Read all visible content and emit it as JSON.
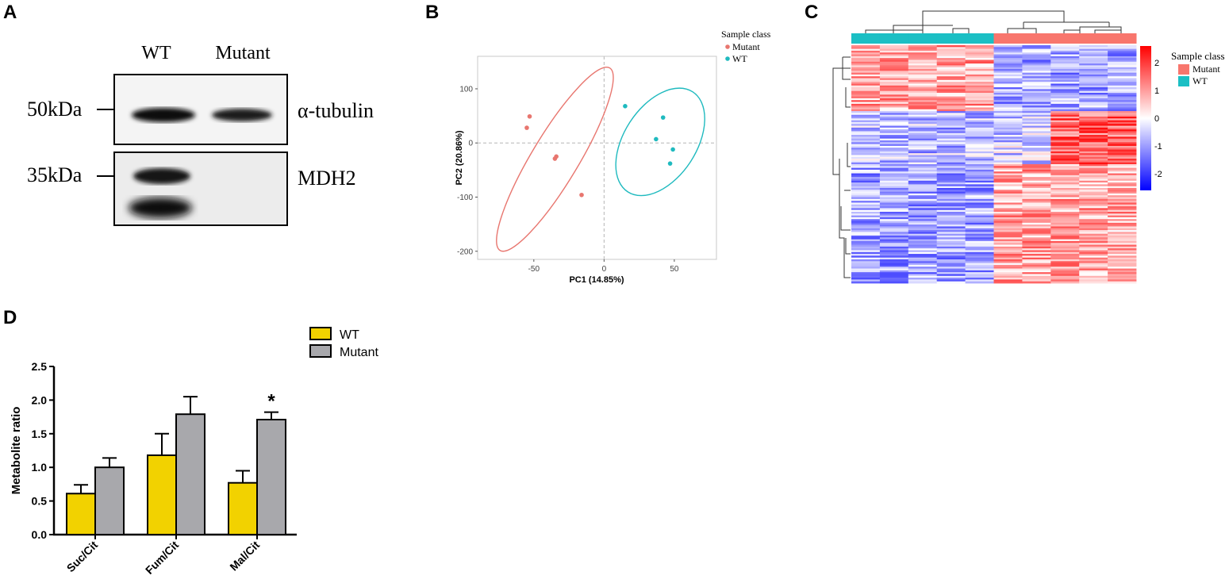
{
  "panels": {
    "a": "A",
    "b": "B",
    "c": "C",
    "d": "D"
  },
  "western_blot": {
    "lanes": [
      "WT",
      "Mutant"
    ],
    "markers": [
      "50kDa",
      "35kDa"
    ],
    "proteins": [
      "α-tubulin",
      "MDH2"
    ]
  },
  "chart_data": [
    {
      "type": "scatter",
      "title": "",
      "xlabel": "PC1 (14.85%)",
      "ylabel": "PC2 (20.86%)",
      "xlim": [
        -90,
        80
      ],
      "ylim": [
        -215,
        160
      ],
      "xticks": [
        -50,
        0,
        50
      ],
      "yticks": [
        100,
        0,
        -100,
        -200
      ],
      "xtick_labels": [
        "-50",
        "0",
        "50"
      ],
      "ytick_labels": [
        "100",
        "0",
        "-100",
        "-200"
      ],
      "legend_title": "Sample class",
      "series": [
        {
          "name": "Mutant",
          "color": "#E8766F",
          "points": [
            [
              -53,
              49
            ],
            [
              -55,
              28
            ],
            [
              -34,
              -25
            ],
            [
              -35,
              -29
            ],
            [
              -16,
              -96
            ]
          ],
          "ellipse": {
            "cx": -35,
            "cy": -30,
            "rx": 100,
            "ry": 22,
            "angle_deg": -59
          }
        },
        {
          "name": "WT",
          "color": "#1FBABF",
          "points": [
            [
              15,
              68
            ],
            [
              42,
              47
            ],
            [
              37,
              7
            ],
            [
              49,
              -12
            ],
            [
              47,
              -38
            ]
          ],
          "ellipse": {
            "cx": 40,
            "cy": 2,
            "rx": 56,
            "ry": 34,
            "angle_deg": -57
          }
        }
      ]
    },
    {
      "type": "heatmap",
      "title": "",
      "colorbar_ticks": [
        "2",
        "1",
        "0",
        "-1",
        "-2"
      ],
      "colorbar_range": [
        -2.6,
        2.6
      ],
      "legend_title": "Sample class",
      "sample_classes": [
        {
          "name": "Mutant",
          "color": "#F8766D"
        },
        {
          "name": "WT",
          "color": "#1BBFC4"
        }
      ],
      "column_classes": [
        "WT",
        "WT",
        "WT",
        "WT",
        "WT",
        "Mutant",
        "Mutant",
        "Mutant",
        "Mutant",
        "Mutant"
      ],
      "n_rows": 130
    },
    {
      "type": "bar",
      "title": "",
      "xlabel": "",
      "ylabel": "Metabolite ratio",
      "ylim": [
        0,
        2.5
      ],
      "yticks": [
        0.0,
        0.5,
        1.0,
        1.5,
        2.0,
        2.5
      ],
      "ytick_labels": [
        "0.0",
        "0.5",
        "1.0",
        "1.5",
        "2.0",
        "2.5"
      ],
      "categories": [
        "Suc/Cit",
        "Fum/Cit",
        "Mal/Cit"
      ],
      "series": [
        {
          "name": "WT",
          "color": "#F2D200",
          "values": [
            0.61,
            1.18,
            0.77
          ],
          "errors": [
            0.13,
            0.32,
            0.18
          ]
        },
        {
          "name": "Mutant",
          "color": "#A8A8AC",
          "values": [
            1.0,
            1.79,
            1.71
          ],
          "errors": [
            0.14,
            0.26,
            0.11
          ]
        }
      ],
      "annotations": [
        {
          "category": "Mal/Cit",
          "series": "Mutant",
          "text": "*"
        }
      ]
    }
  ]
}
